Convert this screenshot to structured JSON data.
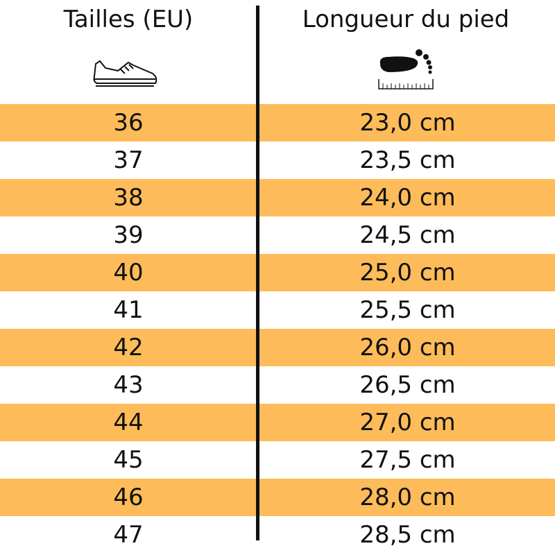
{
  "table": {
    "header": [
      "Tailles (EU)",
      "Longueur du pied"
    ],
    "rows": [
      [
        "36",
        "23,0 cm"
      ],
      [
        "37",
        "23,5 cm"
      ],
      [
        "38",
        "24,0 cm"
      ],
      [
        "39",
        "24,5 cm"
      ],
      [
        "40",
        "25,0 cm"
      ],
      [
        "41",
        "25,5 cm"
      ],
      [
        "42",
        "26,0 cm"
      ],
      [
        "43",
        "26,5 cm"
      ],
      [
        "44",
        "27,0 cm"
      ],
      [
        "45",
        "27,5 cm"
      ],
      [
        "46",
        "28,0 cm"
      ],
      [
        "47",
        "28,5 cm"
      ]
    ]
  }
}
